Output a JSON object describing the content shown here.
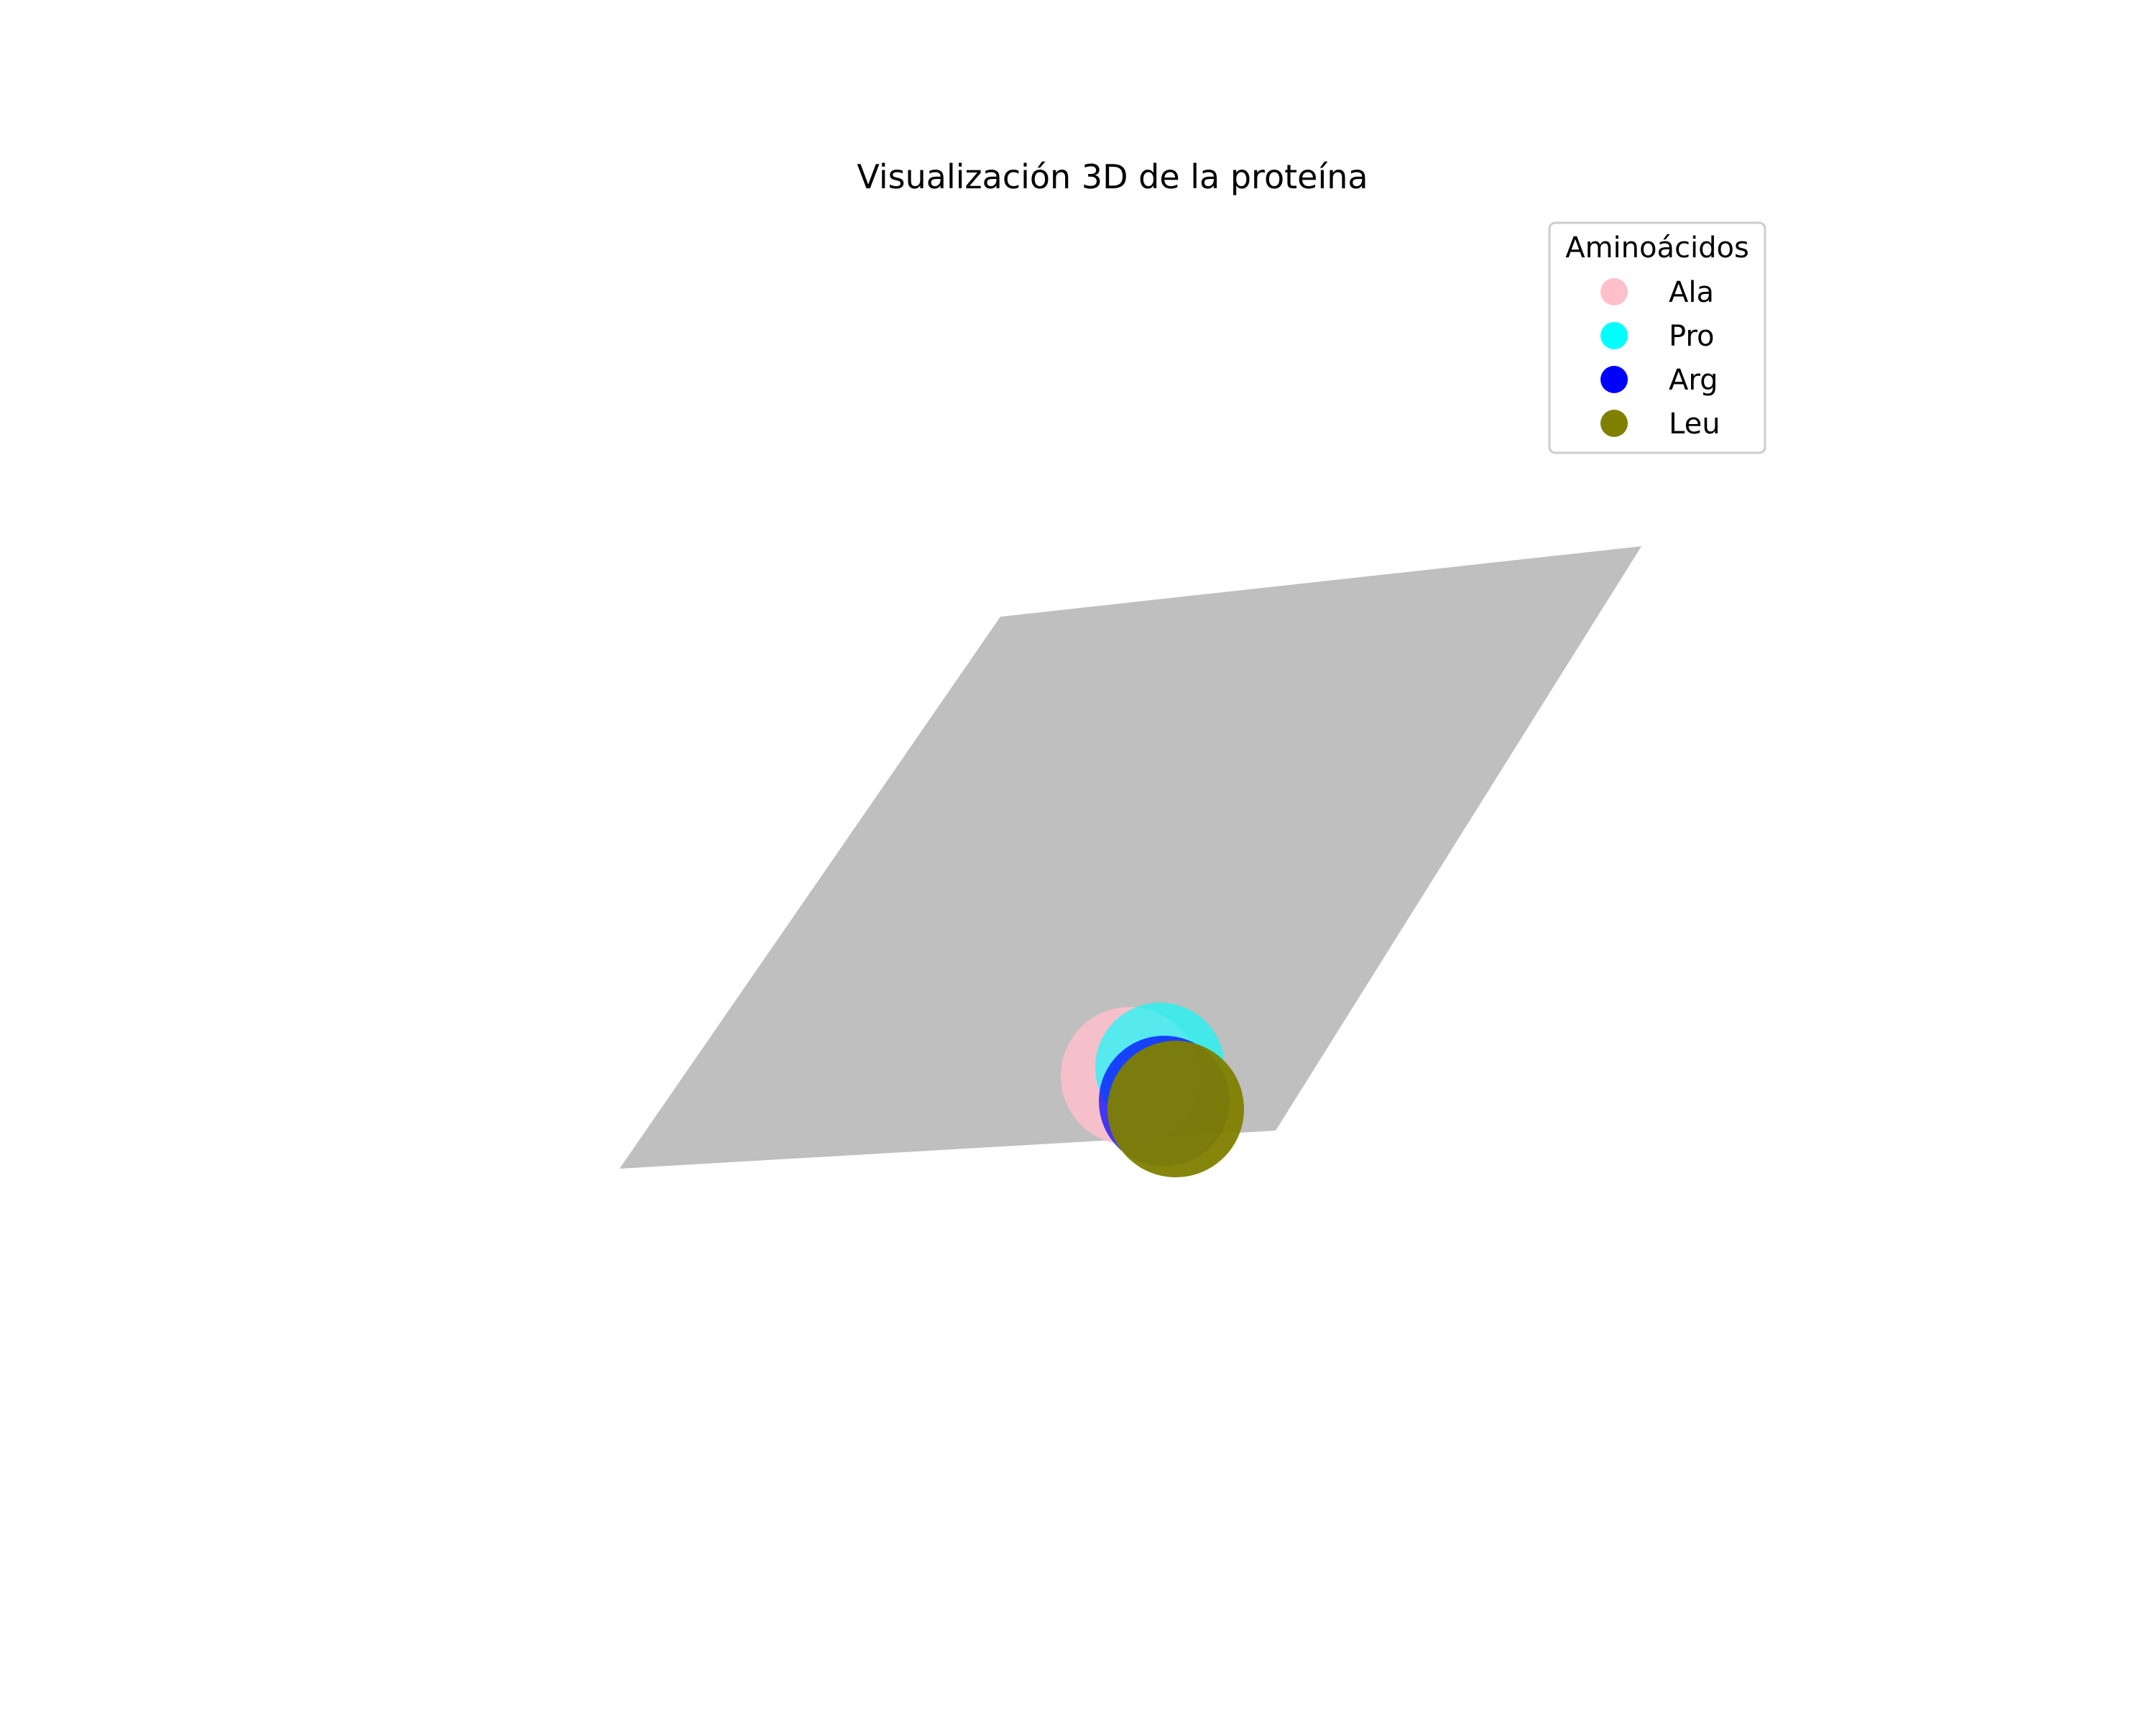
{
  "chart_data": {
    "type": "scatter",
    "title": "Visualización 3D de la proteína",
    "xlabel": "",
    "ylabel": "",
    "zlabel": "",
    "axis_visible": false,
    "grid": false,
    "legend": {
      "title": "Aminoácidos",
      "placement": "top-right"
    },
    "surface": {
      "color": "#bfbfbf",
      "description_label": ""
    },
    "series": [
      {
        "name": "Ala",
        "color": "#ffc0cb"
      },
      {
        "name": "Pro",
        "color": "#00ffff"
      },
      {
        "name": "Arg",
        "color": "#0000ff"
      },
      {
        "name": "Leu",
        "color": "#808000"
      }
    ]
  }
}
